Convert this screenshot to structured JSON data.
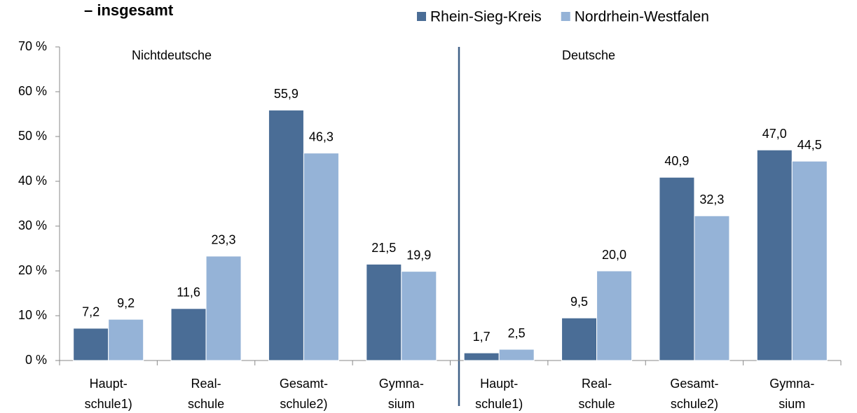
{
  "chart_data": {
    "type": "bar",
    "title": "– insgesamt",
    "annotations": [
      "Nichtdeutsche",
      "Deutsche"
    ],
    "categories": [
      "Haupt-\nschule1)",
      "Real-\nschule",
      "Gesamt-\nschule2)",
      "Gymna-\nsium",
      "Haupt-\nschule1)",
      "Real-\nschule",
      "Gesamt-\nschule2)",
      "Gymna-\nsium"
    ],
    "series": [
      {
        "name": "Rhein-Sieg-Kreis",
        "color": "#4a6d96",
        "values": [
          7.2,
          11.6,
          55.9,
          21.5,
          1.7,
          9.5,
          40.9,
          47.0
        ],
        "value_labels": [
          "7,2",
          "11,6",
          "55,9",
          "21,5",
          "1,7",
          "9,5",
          "40,9",
          "47,0"
        ]
      },
      {
        "name": "Nordrhein-Westfalen",
        "color": "#95b3d7",
        "values": [
          9.2,
          23.3,
          46.3,
          19.9,
          2.5,
          20.0,
          32.3,
          44.5
        ],
        "value_labels": [
          "9,2",
          "23,3",
          "46,3",
          "19,9",
          "2,5",
          "20,0",
          "32,3",
          "44,5"
        ]
      }
    ],
    "ylim": [
      0,
      70
    ],
    "yticks": [
      {
        "value": 0,
        "label": "0 %"
      },
      {
        "value": 10,
        "label": "10 %"
      },
      {
        "value": 20,
        "label": "20 %"
      },
      {
        "value": 30,
        "label": "30 %"
      },
      {
        "value": 40,
        "label": "40 %"
      },
      {
        "value": 50,
        "label": "50 %"
      },
      {
        "value": 60,
        "label": "60 %"
      },
      {
        "value": 70,
        "label": "70 %"
      }
    ],
    "grid": false,
    "legend": "top"
  }
}
